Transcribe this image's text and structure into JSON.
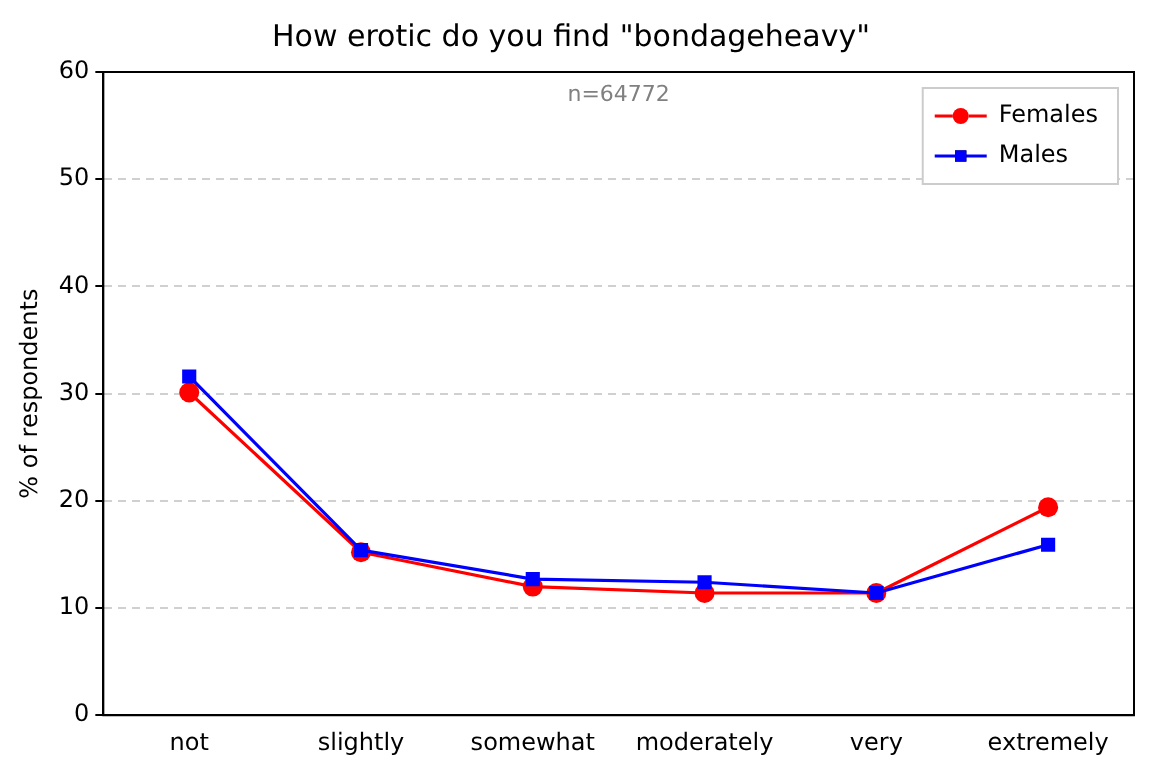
{
  "chart_data": {
    "type": "line",
    "title": "How erotic do you find \"bondageheavy\"",
    "ylabel": "% of respondents",
    "annotations": [
      "n=64772"
    ],
    "categories": [
      "not",
      "slightly",
      "somewhat",
      "moderately",
      "very",
      "extremely"
    ],
    "series": [
      {
        "name": "Females",
        "color": "#ff0000",
        "marker": "circle",
        "values": [
          30.1,
          15.2,
          12.0,
          11.4,
          11.4,
          19.4
        ]
      },
      {
        "name": "Males",
        "color": "#0000ff",
        "marker": "square",
        "values": [
          31.6,
          15.4,
          12.7,
          12.4,
          11.4,
          15.9
        ]
      }
    ],
    "ylim": [
      0,
      60
    ],
    "yticks": [
      0,
      10,
      20,
      30,
      40,
      50,
      60
    ],
    "grid": "y",
    "legend": "top right"
  }
}
